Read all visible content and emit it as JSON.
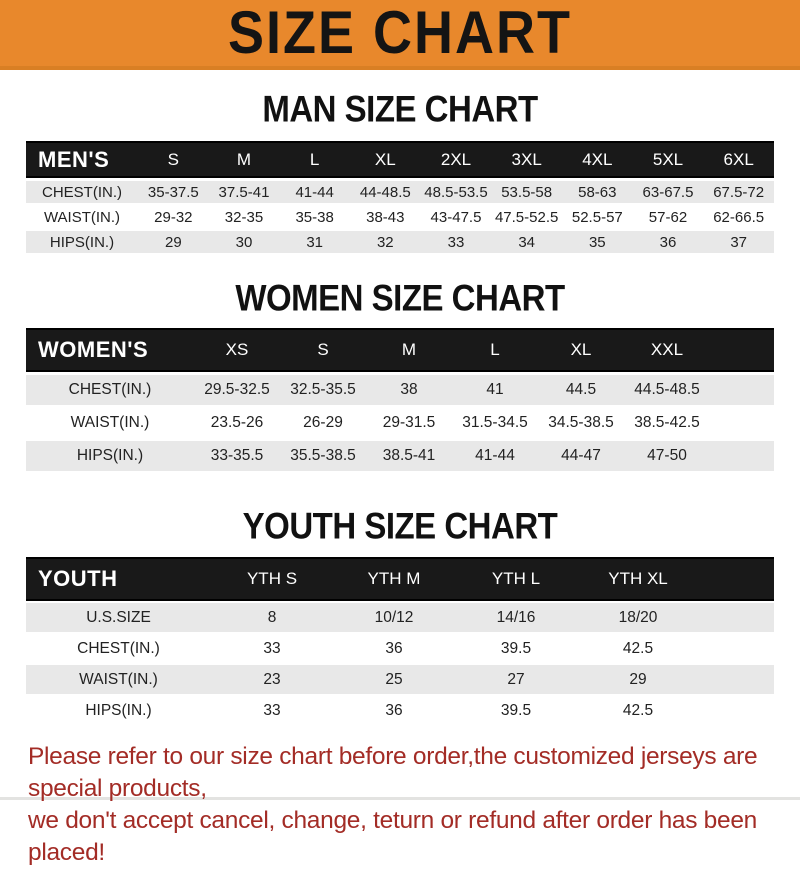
{
  "banner": {
    "title": "SIZE CHART"
  },
  "colors": {
    "banner_orange": "#e8882c",
    "header_black": "#191919",
    "row_gray": "#e8e8e8",
    "note_red": "#a32c26"
  },
  "sections": {
    "man": {
      "heading": "MAN SIZE CHART",
      "table": {
        "header": [
          "MEN'S",
          "S",
          "M",
          "L",
          "XL",
          "2XL",
          "3XL",
          "4XL",
          "5XL",
          "6XL"
        ],
        "rows": [
          {
            "label": "CHEST(IN.)",
            "values": [
              "35-37.5",
              "37.5-41",
              "41-44",
              "44-48.5",
              "48.5-53.5",
              "53.5-58",
              "58-63",
              "63-67.5",
              "67.5-72"
            ]
          },
          {
            "label": "WAIST(IN.)",
            "values": [
              "29-32",
              "32-35",
              "35-38",
              "38-43",
              "43-47.5",
              "47.5-52.5",
              "52.5-57",
              "57-62",
              "62-66.5"
            ]
          },
          {
            "label": "HIPS(IN.)",
            "values": [
              "29",
              "30",
              "31",
              "32",
              "33",
              "34",
              "35",
              "36",
              "37"
            ]
          }
        ]
      }
    },
    "women": {
      "heading": "WOMEN SIZE CHART",
      "table": {
        "header": [
          "WOMEN'S",
          "XS",
          "S",
          "M",
          "L",
          "XL",
          "XXL"
        ],
        "rows": [
          {
            "label": "CHEST(IN.)",
            "values": [
              "29.5-32.5",
              "32.5-35.5",
              "38",
              "41",
              "44.5",
              "44.5-48.5"
            ]
          },
          {
            "label": "WAIST(IN.)",
            "values": [
              "23.5-26",
              "26-29",
              "29-31.5",
              "31.5-34.5",
              "34.5-38.5",
              "38.5-42.5"
            ]
          },
          {
            "label": "HIPS(IN.)",
            "values": [
              "33-35.5",
              "35.5-38.5",
              "38.5-41",
              "41-44",
              "44-47",
              "47-50"
            ]
          }
        ]
      }
    },
    "youth": {
      "heading": "YOUTH SIZE CHART",
      "table": {
        "header": [
          "YOUTH",
          "YTH S",
          "YTH M",
          "YTH L",
          "YTH XL"
        ],
        "rows": [
          {
            "label": "U.S.SIZE",
            "values": [
              "8",
              "10/12",
              "14/16",
              "18/20"
            ]
          },
          {
            "label": "CHEST(IN.)",
            "values": [
              "33",
              "36",
              "39.5",
              "42.5"
            ]
          },
          {
            "label": "WAIST(IN.)",
            "values": [
              "23",
              "25",
              "27",
              "29"
            ]
          },
          {
            "label": "HIPS(IN.)",
            "values": [
              "33",
              "36",
              "39.5",
              "42.5"
            ]
          }
        ]
      }
    }
  },
  "footer": {
    "line1": "Please refer to our size chart before order,the customized jerseys are special products,",
    "line2": "we don't accept cancel, change, teturn or refund after order has been placed!"
  }
}
